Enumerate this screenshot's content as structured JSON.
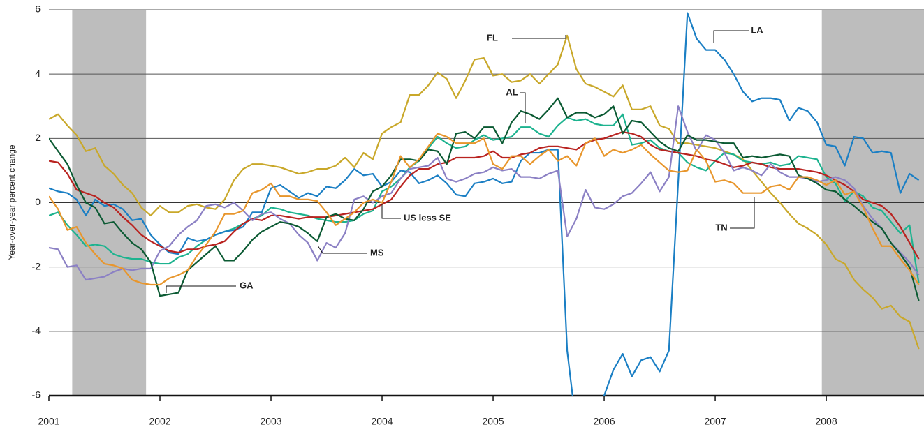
{
  "chart_data": {
    "type": "line",
    "y_label": "Year-over-year percent change",
    "xlim": [
      2001,
      2008.88
    ],
    "xticks": [
      2001,
      2002,
      2003,
      2004,
      2005,
      2006,
      2007,
      2008
    ],
    "ylim": [
      -6,
      6
    ],
    "yticks": [
      6,
      4,
      2,
      0,
      -2,
      -4,
      -6
    ],
    "grid": true,
    "shaded_periods": [
      [
        2001.21,
        2001.875
      ],
      [
        2007.96,
        2008.88
      ]
    ],
    "shade_color": "#bdbdbd",
    "x": [
      2001,
      2001.083,
      2001.167,
      2001.25,
      2001.333,
      2001.417,
      2001.5,
      2001.583,
      2001.667,
      2001.75,
      2001.833,
      2001.917,
      2002,
      2002.083,
      2002.167,
      2002.25,
      2002.333,
      2002.417,
      2002.5,
      2002.583,
      2002.667,
      2002.75,
      2002.833,
      2002.917,
      2003,
      2003.083,
      2003.167,
      2003.25,
      2003.333,
      2003.417,
      2003.5,
      2003.583,
      2003.667,
      2003.75,
      2003.833,
      2003.917,
      2004,
      2004.083,
      2004.167,
      2004.25,
      2004.333,
      2004.417,
      2004.5,
      2004.583,
      2004.667,
      2004.75,
      2004.833,
      2004.917,
      2005,
      2005.083,
      2005.167,
      2005.25,
      2005.333,
      2005.417,
      2005.5,
      2005.583,
      2005.667,
      2005.75,
      2005.833,
      2005.917,
      2006,
      2006.083,
      2006.167,
      2006.25,
      2006.333,
      2006.417,
      2006.5,
      2006.583,
      2006.667,
      2006.75,
      2006.833,
      2006.917,
      2007,
      2007.083,
      2007.167,
      2007.25,
      2007.333,
      2007.417,
      2007.5,
      2007.583,
      2007.667,
      2007.75,
      2007.833,
      2007.917,
      2008,
      2008.083,
      2008.167,
      2008.25,
      2008.333,
      2008.417,
      2008.5,
      2008.583,
      2008.667,
      2008.75,
      2008.833
    ],
    "series": [
      {
        "name": "FL",
        "color": "#c9a82a",
        "values": [
          2.6,
          2.75,
          2.4,
          2.1,
          1.6,
          1.7,
          1.15,
          0.9,
          0.55,
          0.3,
          -0.15,
          -0.4,
          -0.1,
          -0.3,
          -0.3,
          -0.1,
          -0.05,
          -0.15,
          -0.2,
          0.1,
          0.7,
          1.05,
          1.2,
          1.2,
          1.15,
          1.1,
          1.0,
          0.9,
          0.95,
          1.05,
          1.05,
          1.15,
          1.4,
          1.1,
          1.55,
          1.35,
          2.15,
          2.35,
          2.5,
          3.35,
          3.35,
          3.65,
          4.05,
          3.85,
          3.25,
          3.8,
          4.45,
          4.5,
          3.95,
          4.0,
          3.75,
          3.8,
          4.0,
          3.7,
          4.0,
          4.3,
          5.2,
          4.15,
          3.7,
          3.6,
          3.45,
          3.3,
          3.65,
          2.9,
          2.9,
          3.0,
          2.4,
          2.3,
          1.85,
          1.85,
          1.8,
          1.75,
          1.7,
          1.6,
          1.5,
          1.35,
          1.0,
          0.65,
          0.3,
          0.0,
          -0.35,
          -0.65,
          -0.8,
          -1.0,
          -1.3,
          -1.75,
          -1.9,
          -2.4,
          -2.7,
          -2.95,
          -3.3,
          -3.2,
          -3.55,
          -3.7,
          -4.55
        ]
      },
      {
        "name": "AL",
        "color": "#1db38f",
        "values": [
          -0.4,
          -0.3,
          -0.7,
          -1.0,
          -1.35,
          -1.3,
          -1.35,
          -1.6,
          -1.7,
          -1.75,
          -1.75,
          -1.85,
          -1.9,
          -1.9,
          -1.7,
          -1.6,
          -1.35,
          -1.15,
          -1.0,
          -0.9,
          -0.8,
          -0.65,
          -0.5,
          -0.4,
          -0.15,
          -0.2,
          -0.3,
          -0.35,
          -0.4,
          -0.5,
          -0.55,
          -0.6,
          -0.6,
          -0.55,
          -0.35,
          -0.25,
          0.35,
          0.5,
          0.75,
          1.1,
          1.3,
          1.7,
          2.05,
          1.85,
          1.7,
          1.75,
          1.95,
          2.1,
          1.95,
          2.0,
          2.05,
          2.35,
          2.35,
          2.15,
          2.05,
          2.4,
          2.65,
          2.55,
          2.6,
          2.45,
          2.4,
          2.4,
          2.75,
          1.8,
          1.85,
          1.95,
          1.7,
          1.6,
          1.55,
          1.25,
          1.1,
          1.0,
          1.3,
          1.55,
          1.5,
          1.3,
          1.25,
          1.2,
          1.25,
          1.15,
          1.2,
          1.45,
          1.4,
          1.35,
          0.8,
          0.6,
          0.05,
          0.35,
          0.2,
          -0.15,
          -0.25,
          -0.6,
          -0.95,
          -0.7,
          -2.5
        ]
      },
      {
        "name": "LA",
        "color": "#1b7fc4",
        "values": [
          0.45,
          0.35,
          0.3,
          0.1,
          -0.4,
          0.1,
          -0.1,
          -0.05,
          -0.2,
          -0.55,
          -0.5,
          -1.0,
          -1.3,
          -1.55,
          -1.6,
          -1.1,
          -1.2,
          -1.15,
          -1.0,
          -0.9,
          -0.85,
          -0.75,
          -0.3,
          -0.3,
          0.45,
          0.55,
          0.35,
          0.15,
          0.3,
          0.2,
          0.5,
          0.45,
          0.7,
          1.05,
          0.85,
          0.9,
          0.5,
          0.65,
          1.0,
          0.95,
          0.6,
          0.7,
          0.85,
          0.6,
          0.25,
          0.2,
          0.6,
          0.65,
          0.75,
          0.6,
          0.65,
          1.3,
          1.55,
          1.55,
          1.65,
          1.65,
          -4.6,
          -7,
          -7,
          -7,
          -6.0,
          -5.2,
          -4.7,
          -5.4,
          -4.9,
          -4.8,
          -5.25,
          -4.6,
          0.65,
          5.9,
          5.1,
          4.75,
          4.75,
          4.45,
          4.0,
          3.45,
          3.15,
          3.25,
          3.25,
          3.2,
          2.55,
          2.95,
          2.85,
          2.5,
          1.8,
          1.75,
          1.15,
          2.05,
          2.0,
          1.55,
          1.6,
          1.55,
          0.3,
          0.9,
          0.7
        ]
      },
      {
        "name": "US less SE",
        "color": "#b92320",
        "values": [
          1.3,
          1.25,
          0.9,
          0.4,
          0.3,
          0.2,
          0.0,
          -0.15,
          -0.45,
          -0.7,
          -1.0,
          -1.2,
          -1.35,
          -1.5,
          -1.55,
          -1.45,
          -1.45,
          -1.35,
          -1.3,
          -1.2,
          -0.9,
          -0.65,
          -0.5,
          -0.55,
          -0.4,
          -0.4,
          -0.45,
          -0.5,
          -0.45,
          -0.45,
          -0.45,
          -0.4,
          -0.35,
          -0.3,
          -0.25,
          -0.2,
          -0.05,
          0.1,
          0.5,
          0.85,
          1.05,
          1.05,
          1.2,
          1.25,
          1.4,
          1.4,
          1.4,
          1.45,
          1.6,
          1.4,
          1.4,
          1.5,
          1.55,
          1.7,
          1.75,
          1.75,
          1.7,
          1.65,
          1.85,
          1.95,
          2.0,
          2.1,
          2.2,
          2.15,
          2.05,
          1.8,
          1.65,
          1.6,
          1.55,
          1.5,
          1.45,
          1.35,
          1.3,
          1.2,
          1.1,
          1.15,
          1.25,
          1.2,
          1.1,
          1.05,
          1.05,
          1.05,
          1.0,
          0.95,
          0.85,
          0.7,
          0.55,
          0.35,
          0.1,
          0.0,
          -0.1,
          -0.35,
          -0.75,
          -1.25,
          -1.75
        ]
      },
      {
        "name": "MS",
        "color": "#8b80c4",
        "values": [
          -1.4,
          -1.45,
          -2.0,
          -1.95,
          -2.4,
          -2.35,
          -2.3,
          -2.15,
          -2.05,
          -2.1,
          -2.05,
          -2.05,
          -1.5,
          -1.35,
          -1.0,
          -0.75,
          -0.55,
          -0.1,
          -0.05,
          -0.15,
          0.0,
          -0.25,
          -0.55,
          -0.35,
          -0.3,
          -0.5,
          -0.65,
          -1.0,
          -1.25,
          -1.8,
          -1.25,
          -1.4,
          -0.95,
          0.1,
          0.2,
          0.0,
          0.2,
          0.3,
          0.75,
          1.05,
          1.1,
          1.15,
          1.4,
          0.75,
          0.65,
          0.75,
          0.9,
          0.95,
          1.1,
          1.0,
          1.05,
          0.8,
          0.8,
          0.75,
          0.9,
          1.0,
          -1.05,
          -0.5,
          0.4,
          -0.15,
          -0.2,
          -0.05,
          0.2,
          0.3,
          0.6,
          0.95,
          0.35,
          0.8,
          3.0,
          2.2,
          1.6,
          2.1,
          1.95,
          1.55,
          1.0,
          1.1,
          1.0,
          0.85,
          1.2,
          0.95,
          0.8,
          0.8,
          0.75,
          0.65,
          0.7,
          0.8,
          0.7,
          0.45,
          -0.1,
          -0.5,
          -0.8,
          -1.25,
          -1.55,
          -1.85,
          -2.25
        ]
      },
      {
        "name": "GA",
        "color": "#0b5a33",
        "values": [
          2.0,
          1.6,
          1.2,
          0.55,
          0.0,
          -0.15,
          -0.65,
          -0.6,
          -0.95,
          -1.25,
          -1.45,
          -1.85,
          -2.9,
          -2.85,
          -2.8,
          -2.1,
          -1.85,
          -1.6,
          -1.35,
          -1.8,
          -1.8,
          -1.5,
          -1.15,
          -0.9,
          -0.75,
          -0.6,
          -0.65,
          -0.75,
          -0.95,
          -1.2,
          -0.45,
          -0.35,
          -0.5,
          -0.55,
          -0.2,
          0.35,
          0.5,
          0.85,
          1.35,
          1.35,
          1.3,
          1.65,
          1.6,
          1.2,
          2.15,
          2.2,
          2.0,
          2.35,
          2.35,
          1.85,
          2.5,
          2.85,
          2.75,
          2.6,
          2.9,
          3.25,
          2.65,
          2.8,
          2.8,
          2.65,
          2.75,
          3.0,
          2.15,
          2.55,
          2.5,
          2.2,
          1.9,
          1.7,
          1.6,
          2.1,
          1.95,
          1.95,
          1.9,
          1.85,
          1.85,
          1.4,
          1.45,
          1.4,
          1.45,
          1.5,
          1.45,
          0.85,
          0.75,
          0.6,
          0.4,
          0.35,
          0.1,
          -0.1,
          -0.35,
          -0.6,
          -0.8,
          -1.25,
          -1.6,
          -2.0,
          -3.05
        ]
      },
      {
        "name": "TN",
        "color": "#e8962c",
        "values": [
          0.2,
          -0.2,
          -0.85,
          -0.75,
          -1.25,
          -1.6,
          -1.9,
          -1.95,
          -2.05,
          -2.4,
          -2.5,
          -2.55,
          -2.55,
          -2.35,
          -2.25,
          -2.1,
          -1.65,
          -1.3,
          -0.9,
          -0.35,
          -0.35,
          -0.25,
          0.3,
          0.4,
          0.6,
          0.2,
          0.2,
          0.1,
          0.1,
          0.05,
          -0.3,
          -0.7,
          -0.5,
          -0.3,
          0.0,
          0.1,
          0.0,
          0.65,
          1.45,
          1.1,
          1.35,
          1.75,
          2.15,
          2.05,
          1.85,
          1.85,
          1.85,
          2.0,
          1.2,
          1.05,
          1.45,
          1.45,
          1.2,
          1.45,
          1.65,
          1.3,
          1.45,
          1.15,
          1.85,
          2.0,
          1.45,
          1.65,
          1.55,
          1.65,
          1.8,
          1.5,
          1.25,
          1.0,
          0.95,
          1.0,
          1.65,
          1.3,
          0.65,
          0.7,
          0.6,
          0.3,
          0.3,
          0.3,
          0.5,
          0.55,
          0.4,
          0.8,
          0.8,
          0.7,
          0.55,
          0.7,
          0.25,
          0.35,
          -0.15,
          -0.8,
          -1.35,
          -1.35,
          -1.75,
          -2.1,
          -2.55
        ]
      }
    ]
  }
}
